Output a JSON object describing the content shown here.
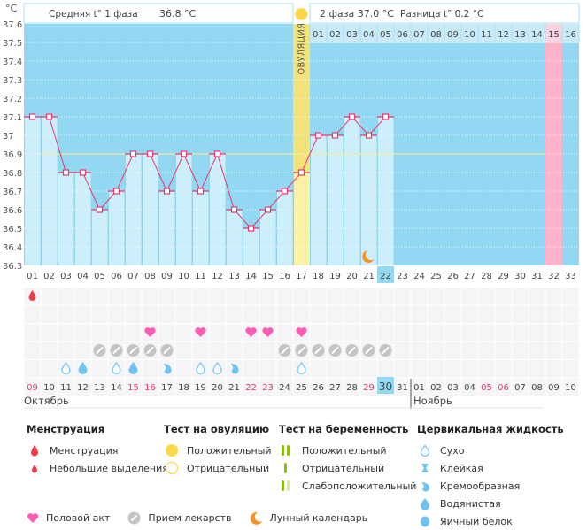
{
  "header": {
    "unit": "°C",
    "phase1_label": "Средняя t° 1 фаза",
    "phase1_value": "36.8 °C",
    "phase2_label": "2 фаза",
    "phase2_value": "37.0 °C",
    "diff_label": "Разница t°",
    "diff_value": "0.2 °C",
    "ovulation_label": "ОВУЛЯЦИЯ"
  },
  "colors": {
    "bg_empty": "#92d8f2",
    "bg_filled": "#cdeefb",
    "ovulation": "#fbf1a6",
    "ovulation_header": "#f1e37a",
    "pink_day": "#fdb3c9",
    "line": "#e8386e",
    "coverline": "#f4eba0",
    "red_date": "#e8386e",
    "today": "#92d8f2"
  },
  "chart_data": {
    "type": "line",
    "title": "",
    "ylabel": "°C",
    "ylim": [
      36.3,
      37.6
    ],
    "yticks": [
      "37.6",
      "37.5",
      "37.4",
      "37.3",
      "37.2",
      "37.1",
      "37",
      "36.9",
      "36.8",
      "36.7",
      "36.6",
      "36.5",
      "36.4",
      "36.3"
    ],
    "cycle_days": [
      "01",
      "02",
      "03",
      "04",
      "05",
      "06",
      "07",
      "08",
      "09",
      "10",
      "11",
      "12",
      "13",
      "14",
      "15",
      "16",
      "17",
      "18",
      "19",
      "20",
      "21",
      "22",
      "23",
      "24",
      "25",
      "26",
      "27",
      "28",
      "29",
      "30",
      "31",
      "32",
      "33"
    ],
    "phase2_days": [
      "01",
      "02",
      "03",
      "04",
      "05",
      "06",
      "07",
      "08",
      "09",
      "10",
      "11",
      "12",
      "13",
      "14",
      "15",
      "16"
    ],
    "temperatures": [
      37.1,
      37.1,
      36.8,
      36.8,
      36.6,
      36.7,
      36.9,
      36.9,
      36.7,
      36.9,
      36.7,
      36.9,
      36.6,
      36.5,
      36.6,
      36.7,
      36.8,
      37.0,
      37.0,
      37.1,
      37.0,
      37.1
    ],
    "coverline": 36.9,
    "coverline_range": [
      2,
      32
    ],
    "ovulation_day": 17,
    "current_day": 22,
    "expected_period_day": 32,
    "moon_day": 21
  },
  "calendar": {
    "dates": [
      "09",
      "10",
      "11",
      "12",
      "13",
      "14",
      "15",
      "16",
      "17",
      "18",
      "19",
      "20",
      "21",
      "22",
      "23",
      "24",
      "25",
      "26",
      "27",
      "28",
      "29",
      "30",
      "31",
      "01",
      "02",
      "03",
      "04",
      "05",
      "06",
      "07",
      "08",
      "09",
      "10"
    ],
    "red_dates_idx": [
      1,
      7,
      8,
      14,
      15,
      21,
      28,
      29
    ],
    "today_idx": 22,
    "months": [
      "Октябрь",
      "Ноябрь"
    ],
    "month_break_idx": 24
  },
  "events": {
    "menstruation": [
      1
    ],
    "hearts": [
      8,
      11,
      14,
      15,
      17
    ],
    "pills": [
      5,
      6,
      7,
      8,
      9,
      16,
      17,
      18,
      19,
      20,
      21,
      22
    ],
    "cervical": [
      {
        "day": 3,
        "type": "dry"
      },
      {
        "day": 4,
        "type": "watery"
      },
      {
        "day": 6,
        "type": "dry"
      },
      {
        "day": 7,
        "type": "watery"
      },
      {
        "day": 9,
        "type": "creamy"
      },
      {
        "day": 11,
        "type": "dry"
      },
      {
        "day": 12,
        "type": "dry"
      },
      {
        "day": 13,
        "type": "creamy"
      },
      {
        "day": 17,
        "type": "dry"
      }
    ]
  },
  "legend": {
    "menstruation": {
      "title": "Менструация",
      "items": [
        "Менструация",
        "Небольшие выделения"
      ]
    },
    "ovulation_test": {
      "title": "Тест на овуляцию",
      "items": [
        "Положительный",
        "Отрицательный"
      ]
    },
    "pregnancy_test": {
      "title": "Тест на беременность",
      "items": [
        "Положительный",
        "Отрицательный",
        "Слабоположительный"
      ]
    },
    "cervical": {
      "title": "Цервикальная жидкость",
      "items": [
        "Сухо",
        "Клейкая",
        "Кремообразная",
        "Водянистая",
        "Яичный белок"
      ]
    },
    "bottom": {
      "sex": "Половой акт",
      "pills": "Прием лекарств",
      "moon": "Лунный календарь"
    }
  }
}
